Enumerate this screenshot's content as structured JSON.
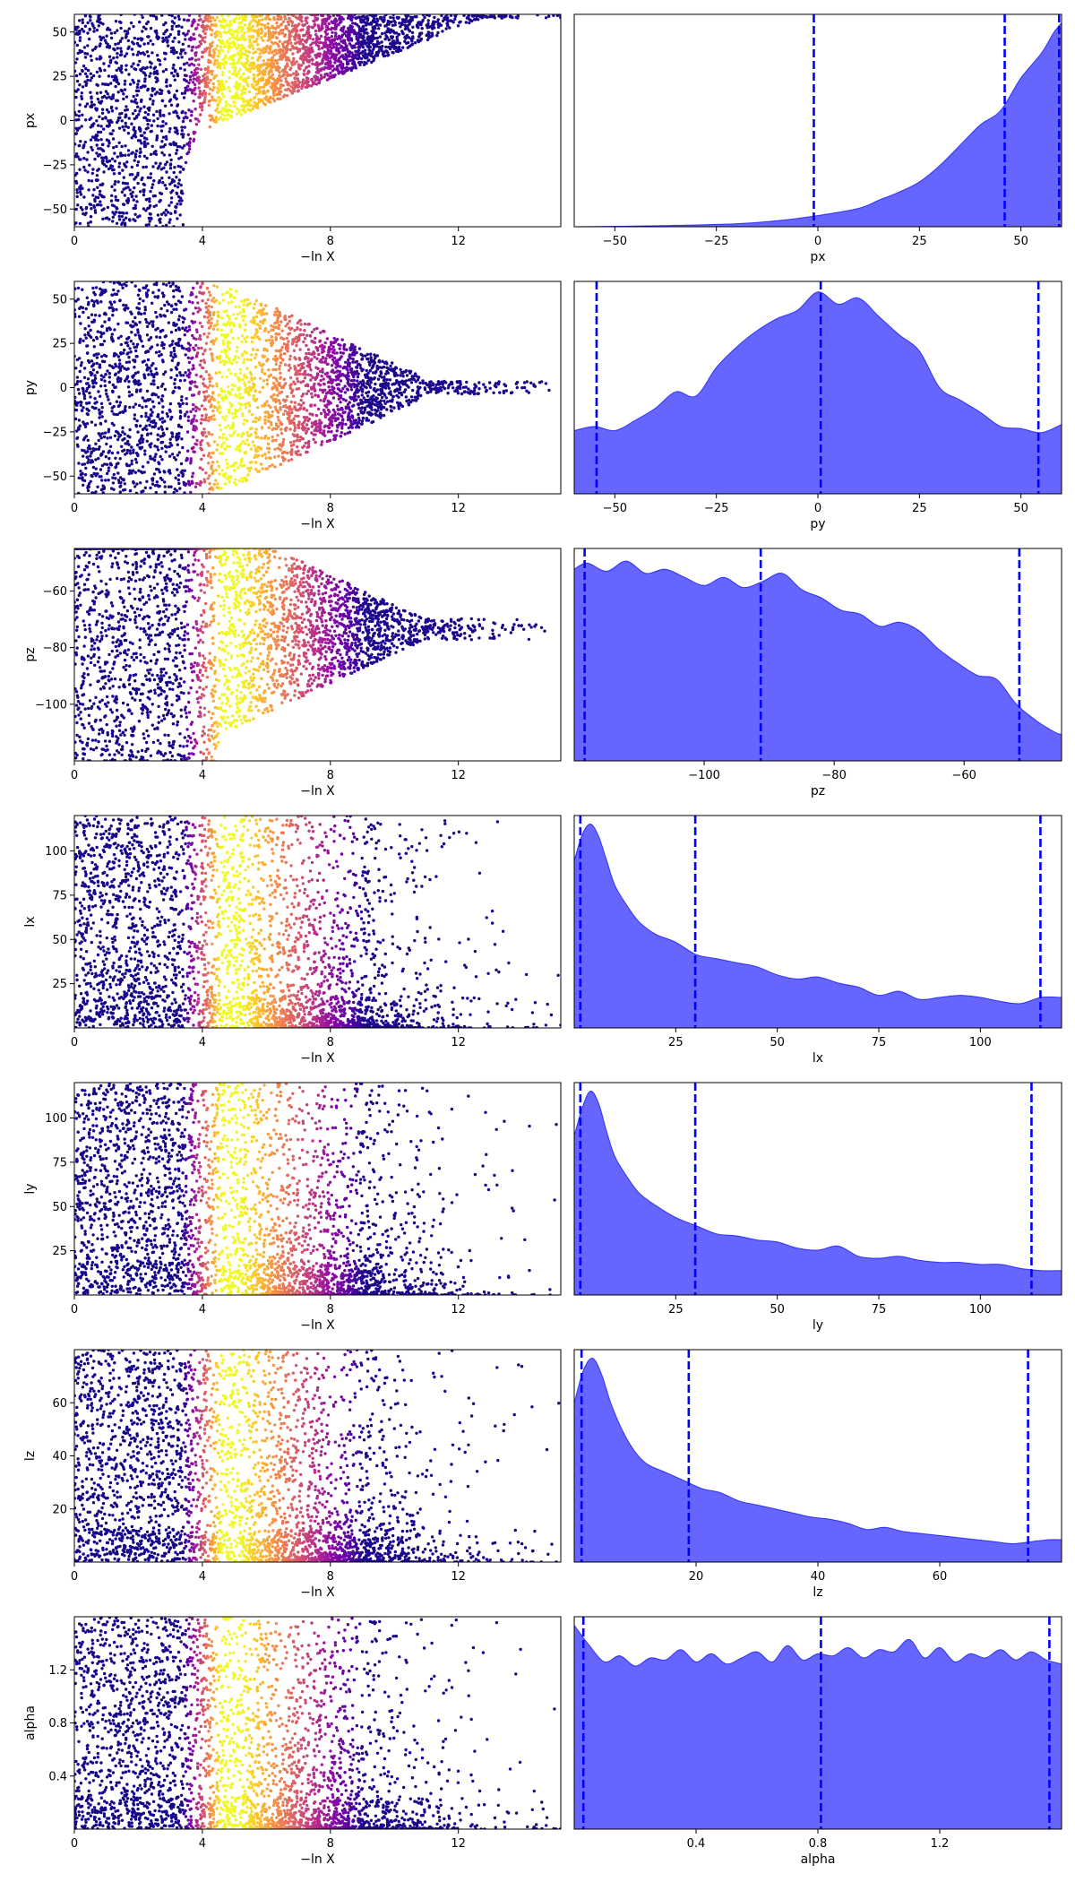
{
  "chart_data": [
    {
      "type": "scatter",
      "xlabel": "−ln X",
      "ylabel": "px",
      "xlim": [
        0,
        15.2
      ],
      "ylim": [
        -60,
        60
      ],
      "xticks": [
        0,
        4,
        8,
        12
      ],
      "yticks": [
        -50,
        -25,
        0,
        25,
        50
      ],
      "point_color_scale": "plasma (dark purple → yellow → dark purple along −ln X)",
      "profile": "px"
    },
    {
      "type": "area",
      "xlabel": "px",
      "xlim": [
        -60,
        60
      ],
      "xticks": [
        -50,
        -25,
        0,
        25,
        50
      ],
      "fill_color": "#0000ff",
      "dashed_lines_x": [
        -1.0,
        46.0,
        59.4
      ],
      "density": {
        "x": [
          -60,
          -40,
          -20,
          -10,
          0,
          10,
          15,
          20,
          25,
          30,
          35,
          40,
          45,
          50,
          55,
          58,
          60
        ],
        "y": [
          0.0,
          0.005,
          0.015,
          0.03,
          0.055,
          0.09,
          0.13,
          0.17,
          0.22,
          0.3,
          0.4,
          0.5,
          0.57,
          0.73,
          0.85,
          0.95,
          1.0
        ]
      }
    },
    {
      "type": "scatter",
      "xlabel": "−ln X",
      "ylabel": "py",
      "xlim": [
        0,
        15.2
      ],
      "ylim": [
        -60,
        60
      ],
      "xticks": [
        0,
        4,
        8,
        12
      ],
      "yticks": [
        -50,
        -25,
        0,
        25,
        50
      ],
      "point_color_scale": "plasma",
      "profile": "pyz"
    },
    {
      "type": "area",
      "xlabel": "py",
      "xlim": [
        -60,
        60
      ],
      "xticks": [
        -50,
        -25,
        0,
        25,
        50
      ],
      "fill_color": "#0000ff",
      "dashed_lines_x": [
        -54.5,
        0.7,
        54.3
      ],
      "density": {
        "x": [
          -60,
          -55,
          -50,
          -45,
          -40,
          -35,
          -30,
          -25,
          -20,
          -15,
          -10,
          -5,
          0,
          5,
          10,
          15,
          20,
          25,
          30,
          35,
          40,
          45,
          50,
          55,
          60
        ],
        "y": [
          0.31,
          0.33,
          0.31,
          0.36,
          0.42,
          0.5,
          0.48,
          0.62,
          0.72,
          0.8,
          0.86,
          0.9,
          0.99,
          0.93,
          0.96,
          0.87,
          0.78,
          0.7,
          0.52,
          0.46,
          0.4,
          0.33,
          0.32,
          0.3,
          0.34
        ]
      }
    },
    {
      "type": "scatter",
      "xlabel": "−ln X",
      "ylabel": "pz",
      "xlim": [
        0,
        15.2
      ],
      "ylim": [
        -120,
        -45
      ],
      "xticks": [
        0,
        4,
        8,
        12
      ],
      "yticks": [
        -100,
        -80,
        -60
      ],
      "point_color_scale": "plasma",
      "profile": "pyz"
    },
    {
      "type": "area",
      "xlabel": "pz",
      "xlim": [
        -120,
        -45
      ],
      "xticks": [
        -100,
        -80,
        -60
      ],
      "fill_color": "#0000ff",
      "dashed_lines_x": [
        -118.4,
        -91.3,
        -51.5
      ],
      "density": {
        "x": [
          -120,
          -118,
          -115,
          -112,
          -109,
          -106,
          -103,
          -100,
          -97,
          -94,
          -91,
          -88,
          -85,
          -82,
          -79,
          -76,
          -73,
          -70,
          -67,
          -64,
          -61,
          -58,
          -55,
          -52,
          -49,
          -46,
          -45
        ],
        "y": [
          0.94,
          0.97,
          0.93,
          0.98,
          0.92,
          0.94,
          0.9,
          0.86,
          0.9,
          0.85,
          0.88,
          0.92,
          0.84,
          0.8,
          0.74,
          0.72,
          0.66,
          0.68,
          0.64,
          0.55,
          0.48,
          0.42,
          0.4,
          0.28,
          0.2,
          0.14,
          0.13
        ]
      }
    },
    {
      "type": "scatter",
      "xlabel": "−ln X",
      "ylabel": "lx",
      "xlim": [
        0,
        15.2
      ],
      "ylim": [
        0,
        120
      ],
      "xticks": [
        0,
        4,
        8,
        12
      ],
      "yticks": [
        25,
        50,
        75,
        100
      ],
      "point_color_scale": "plasma",
      "profile": "l"
    },
    {
      "type": "area",
      "xlabel": "lx",
      "xlim": [
        0,
        120
      ],
      "xticks": [
        25,
        50,
        75,
        100
      ],
      "fill_color": "#0000ff",
      "dashed_lines_x": [
        1.5,
        29.8,
        114.8
      ],
      "density": {
        "x": [
          0,
          2,
          4,
          6,
          8,
          10,
          13,
          16,
          20,
          25,
          30,
          35,
          40,
          45,
          50,
          55,
          60,
          65,
          70,
          75,
          80,
          85,
          90,
          95,
          100,
          105,
          110,
          115,
          120
        ],
        "y": [
          0.82,
          0.95,
          1.0,
          0.94,
          0.82,
          0.7,
          0.6,
          0.52,
          0.46,
          0.42,
          0.36,
          0.34,
          0.32,
          0.3,
          0.26,
          0.24,
          0.25,
          0.22,
          0.2,
          0.16,
          0.18,
          0.14,
          0.15,
          0.16,
          0.15,
          0.13,
          0.12,
          0.15,
          0.15
        ]
      }
    },
    {
      "type": "scatter",
      "xlabel": "−ln X",
      "ylabel": "ly",
      "xlim": [
        0,
        15.2
      ],
      "ylim": [
        0,
        120
      ],
      "xticks": [
        0,
        4,
        8,
        12
      ],
      "yticks": [
        25,
        50,
        75,
        100
      ],
      "point_color_scale": "plasma",
      "profile": "l"
    },
    {
      "type": "area",
      "xlabel": "ly",
      "xlim": [
        0,
        120
      ],
      "xticks": [
        25,
        50,
        75,
        100
      ],
      "fill_color": "#0000ff",
      "dashed_lines_x": [
        1.5,
        29.8,
        112.6
      ],
      "density": {
        "x": [
          0,
          2,
          4,
          6,
          8,
          10,
          13,
          16,
          20,
          25,
          30,
          35,
          40,
          45,
          50,
          55,
          60,
          65,
          70,
          75,
          80,
          85,
          90,
          95,
          100,
          105,
          110,
          115,
          120
        ],
        "y": [
          0.78,
          0.92,
          1.0,
          0.94,
          0.8,
          0.68,
          0.58,
          0.5,
          0.44,
          0.38,
          0.34,
          0.3,
          0.29,
          0.27,
          0.26,
          0.23,
          0.22,
          0.24,
          0.19,
          0.18,
          0.19,
          0.17,
          0.16,
          0.16,
          0.15,
          0.15,
          0.13,
          0.12,
          0.12
        ]
      }
    },
    {
      "type": "scatter",
      "xlabel": "−ln X",
      "ylabel": "lz",
      "xlim": [
        0,
        15.2
      ],
      "ylim": [
        0,
        80
      ],
      "xticks": [
        0,
        4,
        8,
        12
      ],
      "yticks": [
        20,
        40,
        60
      ],
      "point_color_scale": "plasma",
      "profile": "l"
    },
    {
      "type": "area",
      "xlabel": "lz",
      "xlim": [
        0,
        80
      ],
      "xticks": [
        20,
        40,
        60
      ],
      "fill_color": "#0000ff",
      "dashed_lines_x": [
        1.2,
        18.8,
        74.5
      ],
      "density": {
        "x": [
          0,
          1.5,
          3,
          4.5,
          6,
          8,
          10,
          12,
          15,
          18,
          21,
          24,
          27,
          30,
          33,
          36,
          39,
          42,
          45,
          48,
          51,
          54,
          57,
          60,
          63,
          66,
          69,
          72,
          75,
          78,
          80
        ],
        "y": [
          0.78,
          0.94,
          1.0,
          0.92,
          0.78,
          0.64,
          0.54,
          0.48,
          0.44,
          0.4,
          0.36,
          0.34,
          0.3,
          0.28,
          0.26,
          0.24,
          0.22,
          0.21,
          0.19,
          0.16,
          0.17,
          0.15,
          0.14,
          0.13,
          0.12,
          0.11,
          0.1,
          0.09,
          0.1,
          0.11,
          0.11
        ]
      }
    },
    {
      "type": "scatter",
      "xlabel": "−ln X",
      "ylabel": "alpha",
      "xlim": [
        0,
        15.2
      ],
      "ylim": [
        0,
        1.6
      ],
      "xticks": [
        0,
        4,
        8,
        12
      ],
      "yticks": [
        0.4,
        0.8,
        1.2
      ],
      "point_color_scale": "plasma",
      "profile": "l"
    },
    {
      "type": "area",
      "xlabel": "alpha",
      "xlim": [
        0,
        1.6
      ],
      "xticks": [
        0.4,
        0.8,
        1.2
      ],
      "fill_color": "#0000ff",
      "dashed_lines_x": [
        0.03,
        0.81,
        1.56
      ],
      "density": {
        "x": [
          0,
          0.05,
          0.1,
          0.15,
          0.2,
          0.25,
          0.3,
          0.35,
          0.4,
          0.45,
          0.5,
          0.55,
          0.6,
          0.65,
          0.7,
          0.75,
          0.8,
          0.85,
          0.9,
          0.95,
          1.0,
          1.05,
          1.1,
          1.15,
          1.2,
          1.25,
          1.3,
          1.35,
          1.4,
          1.45,
          1.5,
          1.55,
          1.6
        ],
        "y": [
          1.0,
          0.9,
          0.82,
          0.85,
          0.8,
          0.84,
          0.83,
          0.88,
          0.82,
          0.86,
          0.81,
          0.84,
          0.87,
          0.82,
          0.9,
          0.83,
          0.86,
          0.85,
          0.89,
          0.84,
          0.88,
          0.87,
          0.93,
          0.84,
          0.89,
          0.82,
          0.86,
          0.84,
          0.88,
          0.83,
          0.87,
          0.83,
          0.81
        ]
      }
    }
  ]
}
